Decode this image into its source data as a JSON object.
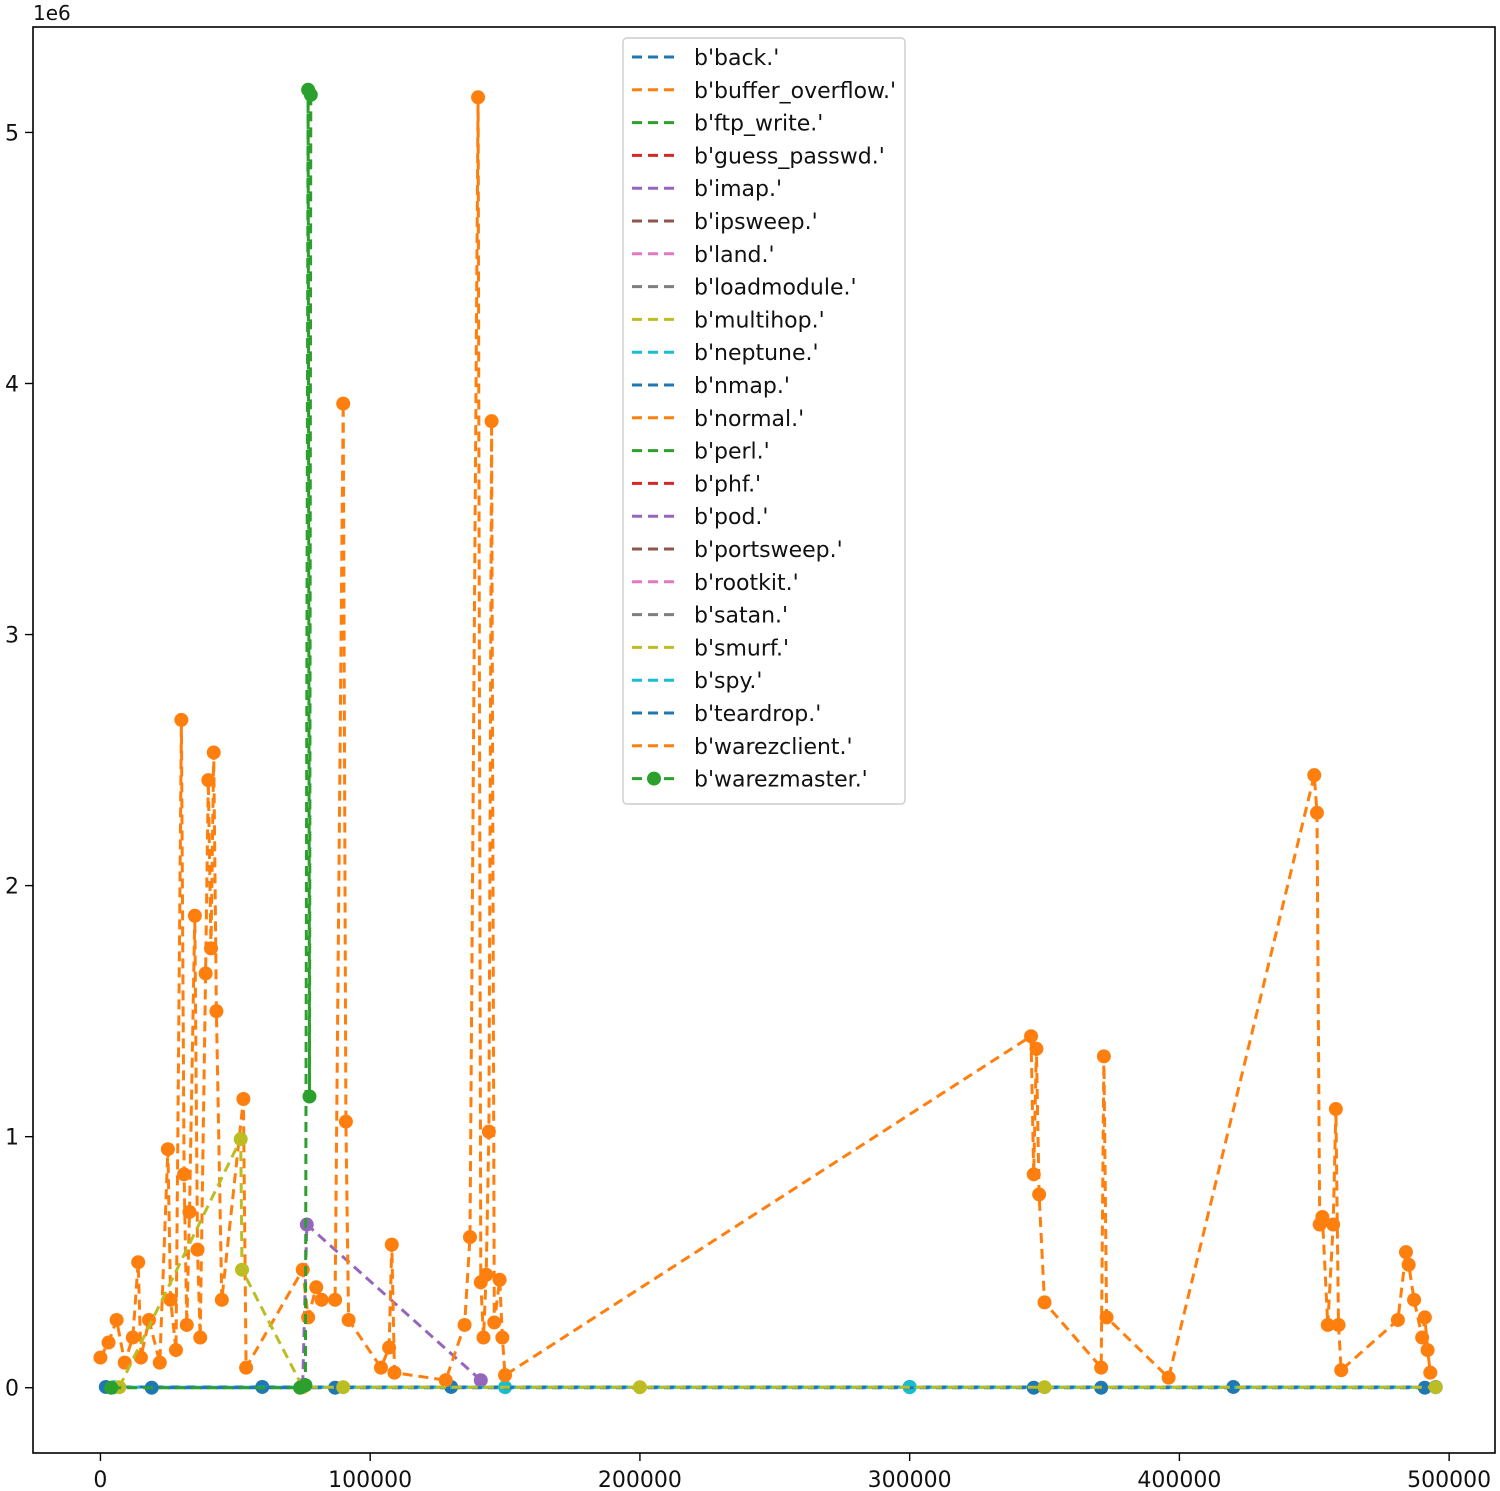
{
  "chart_data": {
    "type": "line",
    "title": "",
    "xlabel": "",
    "ylabel": "",
    "y_offset_label": "1e6",
    "xlim": [
      -25000,
      517000
    ],
    "ylim": [
      -0.26,
      5.42
    ],
    "x_ticks": [
      0,
      100000,
      200000,
      300000,
      400000,
      500000
    ],
    "x_tick_labels": [
      "0",
      "100000",
      "200000",
      "300000",
      "400000",
      "500000"
    ],
    "y_ticks": [
      0,
      1,
      2,
      3,
      4,
      5
    ],
    "y_tick_labels": [
      "0",
      "1",
      "2",
      "3",
      "4",
      "5"
    ],
    "legend_position": "top-center",
    "series": [
      {
        "name": "b'back.'",
        "color": "#1f77b4",
        "x": [
          2000,
          60000,
          130000,
          300000,
          420000,
          495000
        ],
        "y": [
          0.003,
          0.003,
          0.003,
          0.003,
          0.003,
          0.003
        ]
      },
      {
        "name": "b'buffer_overflow.'",
        "color": "#ff7f0e",
        "x": [],
        "y": []
      },
      {
        "name": "b'ftp_write.'",
        "color": "#2ca02c",
        "x": [],
        "y": []
      },
      {
        "name": "b'guess_passwd.'",
        "color": "#d62728",
        "x": [],
        "y": []
      },
      {
        "name": "b'imap.'",
        "color": "#9467bd",
        "x": [
          75000,
          76500,
          141000
        ],
        "y": [
          0.01,
          0.65,
          0.03
        ]
      },
      {
        "name": "b'ipsweep.'",
        "color": "#8c564b",
        "x": [],
        "y": []
      },
      {
        "name": "b'land.'",
        "color": "#e377c2",
        "x": [],
        "y": []
      },
      {
        "name": "b'loadmodule.'",
        "color": "#7f7f7f",
        "x": [],
        "y": []
      },
      {
        "name": "b'multihop.'",
        "color": "#bcbd22",
        "x": [],
        "y": []
      },
      {
        "name": "b'neptune.'",
        "color": "#17becf",
        "x": [
          5000,
          150000,
          300000,
          495000
        ],
        "y": [
          0.002,
          0.002,
          0.002,
          0.002
        ]
      },
      {
        "name": "b'nmap.'",
        "color": "#1f77b4",
        "x": [
          19000,
          87000,
          346000,
          371000,
          491000
        ],
        "y": [
          0,
          0,
          0,
          0,
          0
        ]
      },
      {
        "name": "b'normal.'",
        "color": "#ff7f0e",
        "x": [
          0,
          3000,
          6000,
          9000,
          12000,
          14000,
          15000,
          18000,
          22000,
          25000,
          26000,
          28000,
          30000,
          31000,
          32000,
          33000,
          35000,
          36000,
          37000,
          39000,
          40000,
          41000,
          42000,
          43000,
          45000,
          53000,
          54000,
          75000,
          77000,
          80000,
          82000,
          87000,
          90000,
          91000,
          92000,
          104000,
          107000,
          108000,
          109000,
          128000,
          135000,
          137000,
          140000,
          141000,
          142000,
          143000,
          144000,
          145000,
          146000,
          148000,
          149000,
          150000,
          345000,
          346000,
          347000,
          348000,
          350000,
          371000,
          372000,
          373000,
          396000,
          450000,
          451000,
          452000,
          453000,
          455000,
          457000,
          458000,
          459000,
          460000,
          481000,
          484000,
          485000,
          487000,
          490000,
          491000,
          492000,
          493000
        ],
        "y": [
          0.12,
          0.18,
          0.27,
          0.1,
          0.2,
          0.5,
          0.12,
          0.27,
          0.1,
          0.95,
          0.35,
          0.15,
          2.66,
          0.85,
          0.25,
          0.7,
          1.88,
          0.55,
          0.2,
          1.65,
          2.42,
          1.75,
          2.53,
          1.5,
          0.35,
          1.15,
          0.08,
          0.47,
          0.28,
          0.4,
          0.35,
          0.35,
          3.92,
          1.06,
          0.27,
          0.08,
          0.16,
          0.57,
          0.06,
          0.03,
          0.25,
          0.6,
          5.14,
          0.42,
          0.2,
          0.45,
          1.02,
          3.85,
          0.26,
          0.43,
          0.2,
          0.05,
          1.4,
          0.85,
          1.35,
          0.77,
          0.34,
          0.08,
          1.32,
          0.28,
          0.04,
          2.44,
          2.29,
          0.65,
          0.68,
          0.25,
          0.65,
          1.11,
          0.25,
          0.07,
          0.27,
          0.54,
          0.49,
          0.35,
          0.2,
          0.28,
          0.15,
          0.06
        ]
      },
      {
        "name": "b'perl.'",
        "color": "#2ca02c",
        "x": [],
        "y": []
      },
      {
        "name": "b'phf.'",
        "color": "#d62728",
        "x": [],
        "y": []
      },
      {
        "name": "b'pod.'",
        "color": "#9467bd",
        "x": [],
        "y": []
      },
      {
        "name": "b'portsweep.'",
        "color": "#8c564b",
        "x": [],
        "y": []
      },
      {
        "name": "b'rootkit.'",
        "color": "#e377c2",
        "x": [],
        "y": []
      },
      {
        "name": "b'satan.'",
        "color": "#7f7f7f",
        "x": [],
        "y": []
      },
      {
        "name": "b'smurf.'",
        "color": "#bcbd22",
        "x": [
          7000,
          52000,
          52500,
          75000,
          90000,
          200000,
          350000,
          495000
        ],
        "y": [
          0.002,
          0.99,
          0.47,
          0.002,
          0.002,
          0.002,
          0.002,
          0.002
        ]
      },
      {
        "name": "b'spy.'",
        "color": "#17becf",
        "x": [],
        "y": []
      },
      {
        "name": "b'teardrop.'",
        "color": "#1f77b4",
        "x": [],
        "y": []
      },
      {
        "name": "b'warezclient.'",
        "color": "#ff7f0e",
        "x": [],
        "y": []
      },
      {
        "name": "b'warezmaster.'",
        "color": "#2ca02c",
        "x": [
          4000,
          74000,
          76000,
          77000,
          77500,
          78000
        ],
        "y": [
          0,
          0,
          0.01,
          5.17,
          1.16,
          5.15
        ]
      }
    ]
  }
}
